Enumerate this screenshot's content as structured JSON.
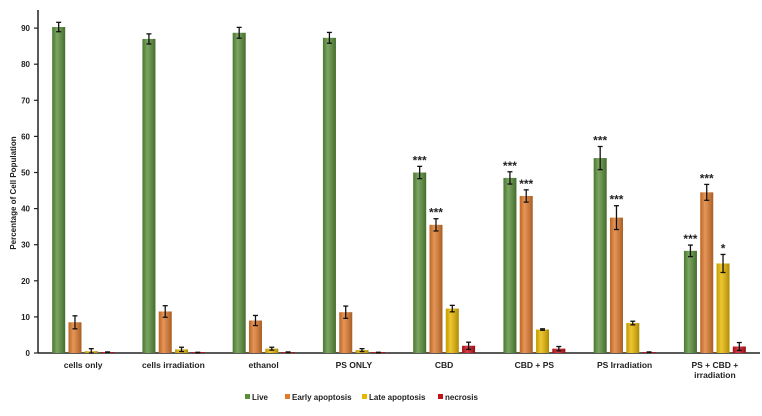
{
  "chart_data": {
    "type": "bar",
    "title": "",
    "xlabel": "",
    "ylabel": "Percentage of Cell Population",
    "ylim": [
      0,
      95
    ],
    "yticks": [
      0,
      10,
      20,
      30,
      40,
      50,
      60,
      70,
      80,
      90
    ],
    "grid": false,
    "legend_position": "bottom",
    "categories": [
      "cells only",
      "cells irradiation",
      "ethanol",
      "PS ONLY",
      "CBD",
      "CBD + PS",
      "PS Irradiation",
      "PS + CBD + irradiation"
    ],
    "category_lines": [
      [
        "cells only"
      ],
      [
        "cells irradiation"
      ],
      [
        "ethanol"
      ],
      [
        "PS ONLY"
      ],
      [
        "CBD"
      ],
      [
        "CBD + PS"
      ],
      [
        "PS Irradiation"
      ],
      [
        "PS + CBD +",
        "irradiation"
      ]
    ],
    "series": [
      {
        "name": "Live",
        "color": "#5a8f3a",
        "values": [
          90.3,
          87.0,
          88.7,
          87.3,
          50.0,
          48.5,
          54.0,
          28.3
        ],
        "errors": [
          1.3,
          1.4,
          1.5,
          1.5,
          1.7,
          1.7,
          3.2,
          1.6
        ],
        "significance": [
          "",
          "",
          "",
          "",
          "***",
          "***",
          "***",
          "***"
        ]
      },
      {
        "name": "Early apoptosis",
        "color": "#e07b2e",
        "values": [
          8.5,
          11.5,
          9.0,
          11.3,
          35.5,
          43.5,
          37.5,
          44.5
        ],
        "errors": [
          1.8,
          1.6,
          1.4,
          1.7,
          1.7,
          1.7,
          3.3,
          2.2
        ],
        "significance": [
          "",
          "",
          "",
          "",
          "***",
          "***",
          "***",
          "***"
        ]
      },
      {
        "name": "Late apoptosis",
        "color": "#e8b800",
        "values": [
          0.5,
          1.0,
          1.2,
          0.8,
          12.3,
          6.5,
          8.3,
          24.8
        ],
        "errors": [
          0.7,
          0.6,
          0.4,
          0.4,
          0.9,
          0.2,
          0.5,
          2.5
        ],
        "significance": [
          "",
          "",
          "",
          "",
          "",
          "",
          "",
          "*"
        ]
      },
      {
        "name": "necrosis",
        "color": "#c8101a",
        "values": [
          0.2,
          0.1,
          0.2,
          0.1,
          2.0,
          1.2,
          0.2,
          1.8
        ],
        "errors": [
          0.1,
          0.1,
          0.1,
          0.1,
          1.0,
          0.6,
          0.1,
          1.1
        ],
        "significance": [
          "",
          "",
          "",
          "",
          "",
          "",
          "",
          ""
        ]
      }
    ]
  }
}
